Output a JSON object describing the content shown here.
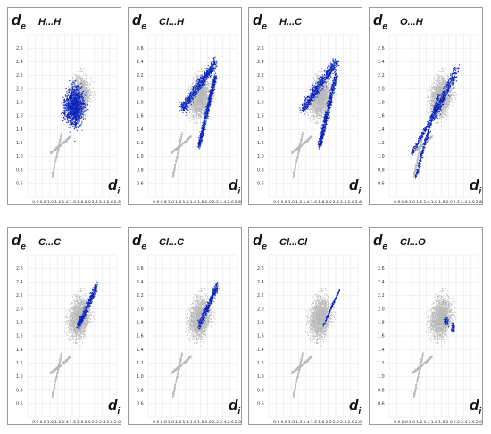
{
  "chart_data": [
    {
      "type": "scatter",
      "title": "H...H",
      "ylabel": "de",
      "xlabel": "di",
      "xlim": [
        0.4,
        2.8
      ],
      "ylim": [
        0.4,
        2.8
      ],
      "x_ticks": [
        "0.6",
        "0.8",
        "1.0",
        "1.2",
        "1.4",
        "1.6",
        "1.8",
        "2.0",
        "2.2",
        "2.4",
        "2.6",
        "2.8"
      ],
      "y_ticks": [
        "0.6",
        "0.8",
        "1.0",
        "1.2",
        "1.4",
        "1.6",
        "1.8",
        "2.0",
        "2.2",
        "2.4",
        "2.6"
      ],
      "contact_share": "large",
      "highlight_color": "#1a2fd8"
    },
    {
      "type": "scatter",
      "title": "Cl...H",
      "ylabel": "de",
      "xlabel": "di",
      "xlim": [
        0.4,
        2.8
      ],
      "ylim": [
        0.4,
        2.8
      ],
      "x_ticks": [
        "0.6",
        "0.8",
        "1.0",
        "1.2",
        "1.4",
        "1.6",
        "1.8",
        "2.0",
        "2.2",
        "2.4",
        "2.6",
        "2.8"
      ],
      "y_ticks": [
        "0.6",
        "0.8",
        "1.0",
        "1.2",
        "1.4",
        "1.6",
        "1.8",
        "2.0",
        "2.2",
        "2.4",
        "2.6"
      ],
      "contact_share": "wings",
      "highlight_color": "#1a2fd8"
    },
    {
      "type": "scatter",
      "title": "H...C",
      "ylabel": "de",
      "xlabel": "di",
      "xlim": [
        0.4,
        2.8
      ],
      "ylim": [
        0.4,
        2.8
      ],
      "x_ticks": [
        "0.6",
        "0.8",
        "1.0",
        "1.2",
        "1.4",
        "1.6",
        "1.8",
        "2.0",
        "2.2",
        "2.4",
        "2.6",
        "2.8"
      ],
      "y_ticks": [
        "0.6",
        "0.8",
        "1.0",
        "1.2",
        "1.4",
        "1.6",
        "1.8",
        "2.0",
        "2.2",
        "2.4",
        "2.6"
      ],
      "contact_share": "wings",
      "highlight_color": "#1a2fd8"
    },
    {
      "type": "scatter",
      "title": "O...H",
      "ylabel": "de",
      "xlabel": "di",
      "xlim": [
        0.4,
        2.8
      ],
      "ylim": [
        0.4,
        2.8
      ],
      "x_ticks": [
        "0.6",
        "0.8",
        "1.0",
        "1.2",
        "1.4",
        "1.6",
        "1.8",
        "2.0",
        "2.2",
        "2.4",
        "2.6",
        "2.8"
      ],
      "y_ticks": [
        "0.6",
        "0.8",
        "1.0",
        "1.2",
        "1.4",
        "1.6",
        "1.8",
        "2.0",
        "2.2",
        "2.4",
        "2.6"
      ],
      "contact_share": "spikes",
      "highlight_color": "#1a2fd8"
    },
    {
      "type": "scatter",
      "title": "C...C",
      "ylabel": "de",
      "xlabel": "di",
      "xlim": [
        0.4,
        2.8
      ],
      "ylim": [
        0.4,
        2.8
      ],
      "x_ticks": [
        "0.6",
        "0.8",
        "1.0",
        "1.2",
        "1.4",
        "1.6",
        "1.8",
        "2.0",
        "2.2",
        "2.4",
        "2.6",
        "2.8"
      ],
      "y_ticks": [
        "0.6",
        "0.8",
        "1.0",
        "1.2",
        "1.4",
        "1.6",
        "1.8",
        "2.0",
        "2.2",
        "2.4",
        "2.6"
      ],
      "contact_share": "diagonal",
      "highlight_color": "#1a2fd8"
    },
    {
      "type": "scatter",
      "title": "Cl...C",
      "ylabel": "de",
      "xlabel": "di",
      "xlim": [
        0.4,
        2.8
      ],
      "ylim": [
        0.4,
        2.8
      ],
      "x_ticks": [
        "0.6",
        "0.8",
        "1.0",
        "1.2",
        "1.4",
        "1.6",
        "1.8",
        "2.0",
        "2.2",
        "2.4",
        "2.6",
        "2.8"
      ],
      "y_ticks": [
        "0.6",
        "0.8",
        "1.0",
        "1.2",
        "1.4",
        "1.6",
        "1.8",
        "2.0",
        "2.2",
        "2.4",
        "2.6"
      ],
      "contact_share": "diagonal",
      "highlight_color": "#1a2fd8"
    },
    {
      "type": "scatter",
      "title": "Cl...Cl",
      "ylabel": "de",
      "xlabel": "di",
      "xlim": [
        0.4,
        2.8
      ],
      "ylim": [
        0.4,
        2.8
      ],
      "x_ticks": [
        "0.6",
        "0.8",
        "1.0",
        "1.2",
        "1.4",
        "1.6",
        "1.8",
        "2.0",
        "2.2",
        "2.4",
        "2.6",
        "2.8"
      ],
      "y_ticks": [
        "0.6",
        "0.8",
        "1.0",
        "1.2",
        "1.4",
        "1.6",
        "1.8",
        "2.0",
        "2.2",
        "2.4",
        "2.6"
      ],
      "contact_share": "thin-diagonal",
      "highlight_color": "#1a2fd8"
    },
    {
      "type": "scatter",
      "title": "Cl...O",
      "ylabel": "de",
      "xlabel": "di",
      "xlim": [
        0.4,
        2.8
      ],
      "ylim": [
        0.4,
        2.8
      ],
      "x_ticks": [
        "0.6",
        "0.8",
        "1.0",
        "1.2",
        "1.4",
        "1.6",
        "1.8",
        "2.0",
        "2.2",
        "2.4",
        "2.6",
        "2.8"
      ],
      "y_ticks": [
        "0.6",
        "0.8",
        "1.0",
        "1.2",
        "1.4",
        "1.6",
        "1.8",
        "2.0",
        "2.2",
        "2.4",
        "2.6"
      ],
      "contact_share": "small-patches",
      "highlight_color": "#1a2fd8"
    }
  ],
  "colors": {
    "background_points": "#b8b8b8",
    "highlight_low": "#0d1fb8",
    "highlight_high": "#3a7fe0",
    "grid": "#dddddd"
  }
}
